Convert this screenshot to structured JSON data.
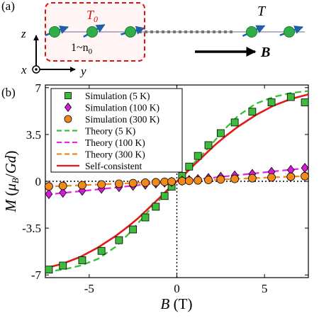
{
  "panel_a": {
    "label": "(a)",
    "region_label": "T",
    "region_label_sub": "0",
    "region_fraction": "1~n",
    "region_fraction_sub": "0",
    "bath_label": "T",
    "field_label": "B",
    "axis_z": "z",
    "axis_x": "x",
    "axis_y": "y",
    "colors": {
      "region_box": "#e01010",
      "spin": "#2fae4a",
      "arrow": "#1f5fa8",
      "chain": "#8a8aa8"
    }
  },
  "chart_data": {
    "panel_label": "(b)",
    "type": "scatter",
    "xlabel": "B (T)",
    "ylabel": "M (μB/Gd)",
    "xlim": [
      -7.5,
      7.5
    ],
    "ylim": [
      -7.2,
      7.2
    ],
    "xticks": [
      -5,
      0,
      5
    ],
    "xtick_labels": [
      "-5",
      "0",
      "5"
    ],
    "yticks": [
      -7,
      -3.5,
      0,
      3.5,
      7
    ],
    "ytick_labels": [
      "-7",
      "-3.5",
      "0",
      "3.5",
      "7"
    ],
    "legend_position": "top-left",
    "series": [
      {
        "name": "Simulation (5 K)",
        "kind": "marker",
        "marker": "square",
        "color": "#3dbb3d",
        "x": [
          -7.3,
          -6.5,
          -5.4,
          -4.3,
          -3.3,
          -2.5,
          -1.8,
          -1.2,
          -0.7,
          -0.3,
          0.3,
          0.7,
          1.2,
          1.8,
          2.5,
          3.3,
          4.3,
          5.4,
          6.5,
          7.3
        ],
        "y": [
          -6.6,
          -6.3,
          -5.9,
          -5.2,
          -4.4,
          -3.6,
          -2.7,
          -1.9,
          -1.1,
          -0.4,
          0.4,
          1.1,
          1.9,
          2.7,
          3.6,
          4.4,
          5.2,
          5.9,
          6.3,
          5.9
        ]
      },
      {
        "name": "Simulation (100 K)",
        "kind": "marker",
        "marker": "diamond",
        "color": "#d61ad6",
        "x": [
          -7.3,
          -6.5,
          -5.4,
          -4.3,
          -3.3,
          -2.5,
          -1.8,
          -1.2,
          -0.7,
          -0.3,
          0.3,
          0.7,
          1.2,
          1.8,
          2.5,
          3.3,
          4.3,
          5.4,
          6.5,
          7.3
        ],
        "y": [
          -0.95,
          -0.85,
          -0.7,
          -0.55,
          -0.43,
          -0.33,
          -0.24,
          -0.16,
          -0.09,
          -0.04,
          0.04,
          0.09,
          0.16,
          0.24,
          0.33,
          0.43,
          0.55,
          0.7,
          0.85,
          1.0
        ]
      },
      {
        "name": "Simulation (300 K)",
        "kind": "marker",
        "marker": "circle",
        "color": "#f08a1c",
        "x": [
          -7.3,
          -6.5,
          -5.4,
          -4.3,
          -3.3,
          -2.5,
          -1.8,
          -1.2,
          -0.7,
          -0.3,
          0.3,
          0.7,
          1.2,
          1.8,
          2.5,
          3.3,
          4.3,
          5.4,
          6.5,
          7.3
        ],
        "y": [
          -0.38,
          -0.34,
          -0.29,
          -0.23,
          -0.18,
          -0.14,
          -0.1,
          -0.07,
          -0.04,
          -0.02,
          0.02,
          0.04,
          0.07,
          0.1,
          0.14,
          0.18,
          0.23,
          0.29,
          0.34,
          0.38
        ]
      },
      {
        "name": "Theory (5 K)",
        "kind": "line",
        "dash": "dashed",
        "color": "#36c236",
        "x": [
          -7.5,
          -6.5,
          -5.5,
          -4.5,
          -3.5,
          -2.8,
          -2.2,
          -1.6,
          -1.0,
          -0.5,
          0,
          0.5,
          1.0,
          1.6,
          2.2,
          2.8,
          3.5,
          4.5,
          5.5,
          6.5,
          7.5
        ],
        "y": [
          -6.75,
          -6.6,
          -6.3,
          -5.8,
          -4.9,
          -4.0,
          -3.1,
          -2.2,
          -1.4,
          -0.7,
          0,
          0.7,
          1.4,
          2.2,
          3.1,
          4.0,
          4.9,
          5.8,
          6.3,
          6.6,
          6.75
        ]
      },
      {
        "name": "Theory (100 K)",
        "kind": "line",
        "dash": "dashed",
        "color": "#e22ae2",
        "x": [
          -7.5,
          -5,
          -2.5,
          0,
          2.5,
          5,
          7.5
        ],
        "y": [
          -1.0,
          -0.67,
          -0.33,
          0,
          0.33,
          0.67,
          1.0
        ]
      },
      {
        "name": "Theory (300 K)",
        "kind": "line",
        "dash": "dashed",
        "color": "#f08a1c",
        "x": [
          -7.5,
          -5,
          -2.5,
          0,
          2.5,
          5,
          7.5
        ],
        "y": [
          -0.4,
          -0.27,
          -0.13,
          0,
          0.13,
          0.27,
          0.4
        ]
      },
      {
        "name": "Self-consistent",
        "kind": "line",
        "dash": "solid",
        "color": "#e21a1a",
        "x": [
          -7.5,
          -6.5,
          -5.5,
          -4.5,
          -3.5,
          -2.8,
          -2.2,
          -1.6,
          -1.0,
          -0.5,
          0,
          0.5,
          1.0,
          1.6,
          2.2,
          2.8,
          3.5,
          4.5,
          5.5,
          6.5,
          7.5
        ],
        "y": [
          -6.5,
          -6.15,
          -5.65,
          -4.95,
          -4.1,
          -3.4,
          -2.75,
          -2.0,
          -1.25,
          -0.6,
          0,
          0.6,
          1.25,
          2.0,
          2.75,
          3.4,
          4.1,
          4.95,
          5.65,
          6.15,
          6.5
        ]
      }
    ]
  }
}
